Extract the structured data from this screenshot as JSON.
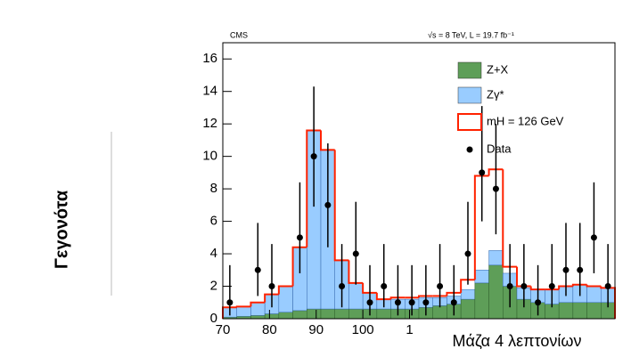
{
  "chart_data": {
    "type": "histogram",
    "experiment": "CMS",
    "energy_label": "√s = 8 TeV, L = 19.7 fb⁻¹",
    "xlabel": "Μάζα 4 λεπτονίων",
    "ylabel": "Γεγονότα",
    "bins": [
      70,
      73,
      76,
      79,
      82,
      85,
      88,
      91,
      94,
      97,
      100,
      103,
      106,
      109,
      112,
      115,
      118,
      121,
      124,
      127,
      130,
      133,
      136,
      139,
      142,
      145,
      148,
      151,
      154
    ],
    "series": [
      {
        "name": "Z+X",
        "color": "#5e9e58",
        "values": [
          0.1,
          0.15,
          0.2,
          0.3,
          0.4,
          0.5,
          0.6,
          0.6,
          0.6,
          0.6,
          0.6,
          0.6,
          0.6,
          0.6,
          0.7,
          0.8,
          0.9,
          1.2,
          2.2,
          3.3,
          2.0,
          1.2,
          1.0,
          0.9,
          1.0,
          1.0,
          1.0,
          1.0
        ]
      },
      {
        "name": "Zγ*",
        "color": "#99ccff",
        "values": [
          0.6,
          0.6,
          0.8,
          1.2,
          1.6,
          3.9,
          11.0,
          9.8,
          3.0,
          1.6,
          1.0,
          0.6,
          0.6,
          0.6,
          0.6,
          0.5,
          0.5,
          0.6,
          0.8,
          0.9,
          0.8,
          0.7,
          0.8,
          0.9,
          1.0,
          1.1,
          1.0,
          0.9
        ]
      },
      {
        "name": "mH = 126 GeV",
        "color": "#ff2200",
        "values": [
          0,
          0,
          0,
          0,
          0,
          0,
          0,
          0,
          0,
          0,
          0,
          0,
          0.1,
          0.1,
          0.1,
          0.1,
          0.2,
          0.6,
          5.8,
          5.0,
          0.4,
          0.1,
          0,
          0,
          0,
          0,
          0,
          0
        ]
      }
    ],
    "data": {
      "name": "Data",
      "color": "#000000",
      "x": [
        71.5,
        77.5,
        80.5,
        86.5,
        89.5,
        92.5,
        95.5,
        98.5,
        101.5,
        104.5,
        107.5,
        110.5,
        113.5,
        116.5,
        119.5,
        122.5,
        125.5,
        128.5,
        131.5,
        134.5,
        137.5,
        140.5,
        143.5,
        146.5,
        149.5,
        152.5
      ],
      "values": [
        1,
        3,
        2,
        5,
        10,
        7,
        2,
        4,
        1,
        2,
        1,
        1,
        1,
        2,
        1,
        4,
        9,
        8,
        2,
        2,
        1,
        2,
        3,
        3,
        5,
        2
      ],
      "err_low": [
        0.8,
        1.6,
        1.3,
        2.2,
        3.1,
        2.6,
        1.3,
        1.9,
        0.8,
        1.3,
        0.8,
        0.8,
        0.8,
        1.3,
        0.8,
        1.9,
        3.0,
        2.8,
        1.3,
        1.3,
        0.8,
        1.3,
        1.6,
        1.6,
        2.2,
        1.3
      ],
      "err_high": [
        2.3,
        2.9,
        2.6,
        3.4,
        4.3,
        3.8,
        2.6,
        3.2,
        2.3,
        2.6,
        2.3,
        2.3,
        2.3,
        2.6,
        2.3,
        3.2,
        4.1,
        4.0,
        2.6,
        2.6,
        2.3,
        2.6,
        2.9,
        2.9,
        3.4,
        2.6
      ]
    },
    "xlim": [
      70,
      154
    ],
    "ylim": [
      0,
      17
    ],
    "xticks": [
      70,
      80,
      90,
      100,
      {
        "value": 110,
        "label": "1"
      }
    ],
    "yticks": [
      0,
      2,
      4,
      6,
      8,
      10,
      12,
      14,
      16
    ]
  }
}
